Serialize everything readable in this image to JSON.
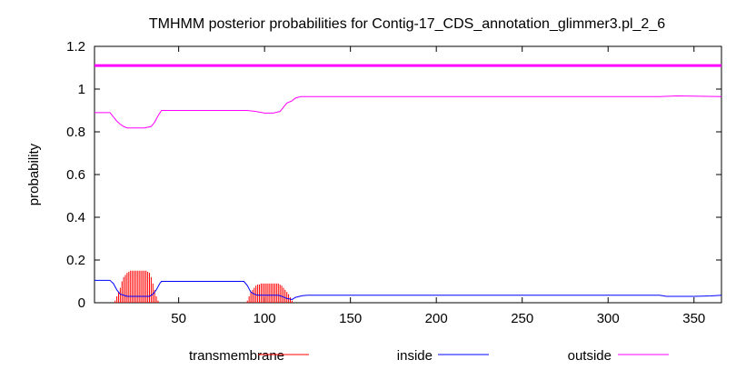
{
  "chart_data": {
    "type": "line",
    "title": "TMHMM posterior probabilities for Contig-17_CDS_annotation_glimmer3.pl_2_6",
    "xlabel": "",
    "ylabel": "probability",
    "xlim": [
      1,
      366
    ],
    "ylim": [
      0,
      1.2
    ],
    "x_ticks": [
      50,
      100,
      150,
      200,
      250,
      300,
      350
    ],
    "y_ticks": [
      0,
      0.2,
      0.4,
      0.6,
      0.8,
      1,
      1.2
    ],
    "y_tick_labels": [
      "0",
      "0.2",
      "0.4",
      "0.6",
      "0.8",
      "1",
      "1.2"
    ],
    "grid": false,
    "legend_placement": "bottom",
    "colors": {
      "transmembrane": "#ff0000",
      "inside": "#0000ff",
      "outside": "#ff00ff"
    },
    "topology_line": {
      "color": "#ff00ff",
      "y": 1.11
    },
    "series": [
      {
        "name": "transmembrane",
        "style": "impulses",
        "points": [
          [
            13,
            0.01
          ],
          [
            14,
            0.03
          ],
          [
            15,
            0.05
          ],
          [
            16,
            0.07
          ],
          [
            17,
            0.1
          ],
          [
            18,
            0.12
          ],
          [
            19,
            0.13
          ],
          [
            20,
            0.14
          ],
          [
            21,
            0.145
          ],
          [
            22,
            0.15
          ],
          [
            23,
            0.15
          ],
          [
            24,
            0.15
          ],
          [
            25,
            0.15
          ],
          [
            26,
            0.15
          ],
          [
            27,
            0.15
          ],
          [
            28,
            0.15
          ],
          [
            29,
            0.15
          ],
          [
            30,
            0.15
          ],
          [
            31,
            0.15
          ],
          [
            32,
            0.145
          ],
          [
            33,
            0.14
          ],
          [
            34,
            0.12
          ],
          [
            35,
            0.09
          ],
          [
            36,
            0.06
          ],
          [
            37,
            0.03
          ],
          [
            38,
            0.01
          ],
          [
            90,
            0.01
          ],
          [
            91,
            0.03
          ],
          [
            92,
            0.05
          ],
          [
            93,
            0.06
          ],
          [
            94,
            0.07
          ],
          [
            95,
            0.08
          ],
          [
            96,
            0.085
          ],
          [
            97,
            0.085
          ],
          [
            98,
            0.09
          ],
          [
            99,
            0.09
          ],
          [
            100,
            0.09
          ],
          [
            101,
            0.09
          ],
          [
            102,
            0.09
          ],
          [
            103,
            0.09
          ],
          [
            104,
            0.09
          ],
          [
            105,
            0.09
          ],
          [
            106,
            0.09
          ],
          [
            107,
            0.09
          ],
          [
            108,
            0.09
          ],
          [
            109,
            0.085
          ],
          [
            110,
            0.08
          ],
          [
            111,
            0.07
          ],
          [
            112,
            0.06
          ],
          [
            113,
            0.05
          ],
          [
            114,
            0.04
          ],
          [
            115,
            0.025
          ],
          [
            116,
            0.01
          ]
        ]
      },
      {
        "name": "inside",
        "style": "line",
        "points": [
          [
            1,
            0.105
          ],
          [
            10,
            0.105
          ],
          [
            12,
            0.09
          ],
          [
            14,
            0.06
          ],
          [
            16,
            0.04
          ],
          [
            18,
            0.035
          ],
          [
            20,
            0.03
          ],
          [
            30,
            0.03
          ],
          [
            33,
            0.03
          ],
          [
            35,
            0.04
          ],
          [
            37,
            0.06
          ],
          [
            39,
            0.09
          ],
          [
            40,
            0.1
          ],
          [
            85,
            0.1
          ],
          [
            88,
            0.1
          ],
          [
            90,
            0.08
          ],
          [
            92,
            0.05
          ],
          [
            94,
            0.04
          ],
          [
            96,
            0.035
          ],
          [
            108,
            0.035
          ],
          [
            110,
            0.03
          ],
          [
            113,
            0.02
          ],
          [
            116,
            0.015
          ],
          [
            118,
            0.025
          ],
          [
            122,
            0.033
          ],
          [
            125,
            0.035
          ],
          [
            330,
            0.035
          ],
          [
            334,
            0.03
          ],
          [
            350,
            0.03
          ],
          [
            360,
            0.032
          ],
          [
            366,
            0.035
          ]
        ]
      },
      {
        "name": "outside",
        "style": "line",
        "points": [
          [
            1,
            0.89
          ],
          [
            10,
            0.89
          ],
          [
            12,
            0.87
          ],
          [
            14,
            0.85
          ],
          [
            16,
            0.835
          ],
          [
            18,
            0.825
          ],
          [
            20,
            0.818
          ],
          [
            30,
            0.818
          ],
          [
            34,
            0.825
          ],
          [
            36,
            0.845
          ],
          [
            38,
            0.875
          ],
          [
            40,
            0.9
          ],
          [
            90,
            0.9
          ],
          [
            95,
            0.895
          ],
          [
            100,
            0.888
          ],
          [
            105,
            0.888
          ],
          [
            109,
            0.895
          ],
          [
            111,
            0.915
          ],
          [
            113,
            0.935
          ],
          [
            116,
            0.945
          ],
          [
            118,
            0.958
          ],
          [
            121,
            0.965
          ],
          [
            330,
            0.965
          ],
          [
            340,
            0.968
          ],
          [
            366,
            0.965
          ]
        ]
      }
    ]
  }
}
